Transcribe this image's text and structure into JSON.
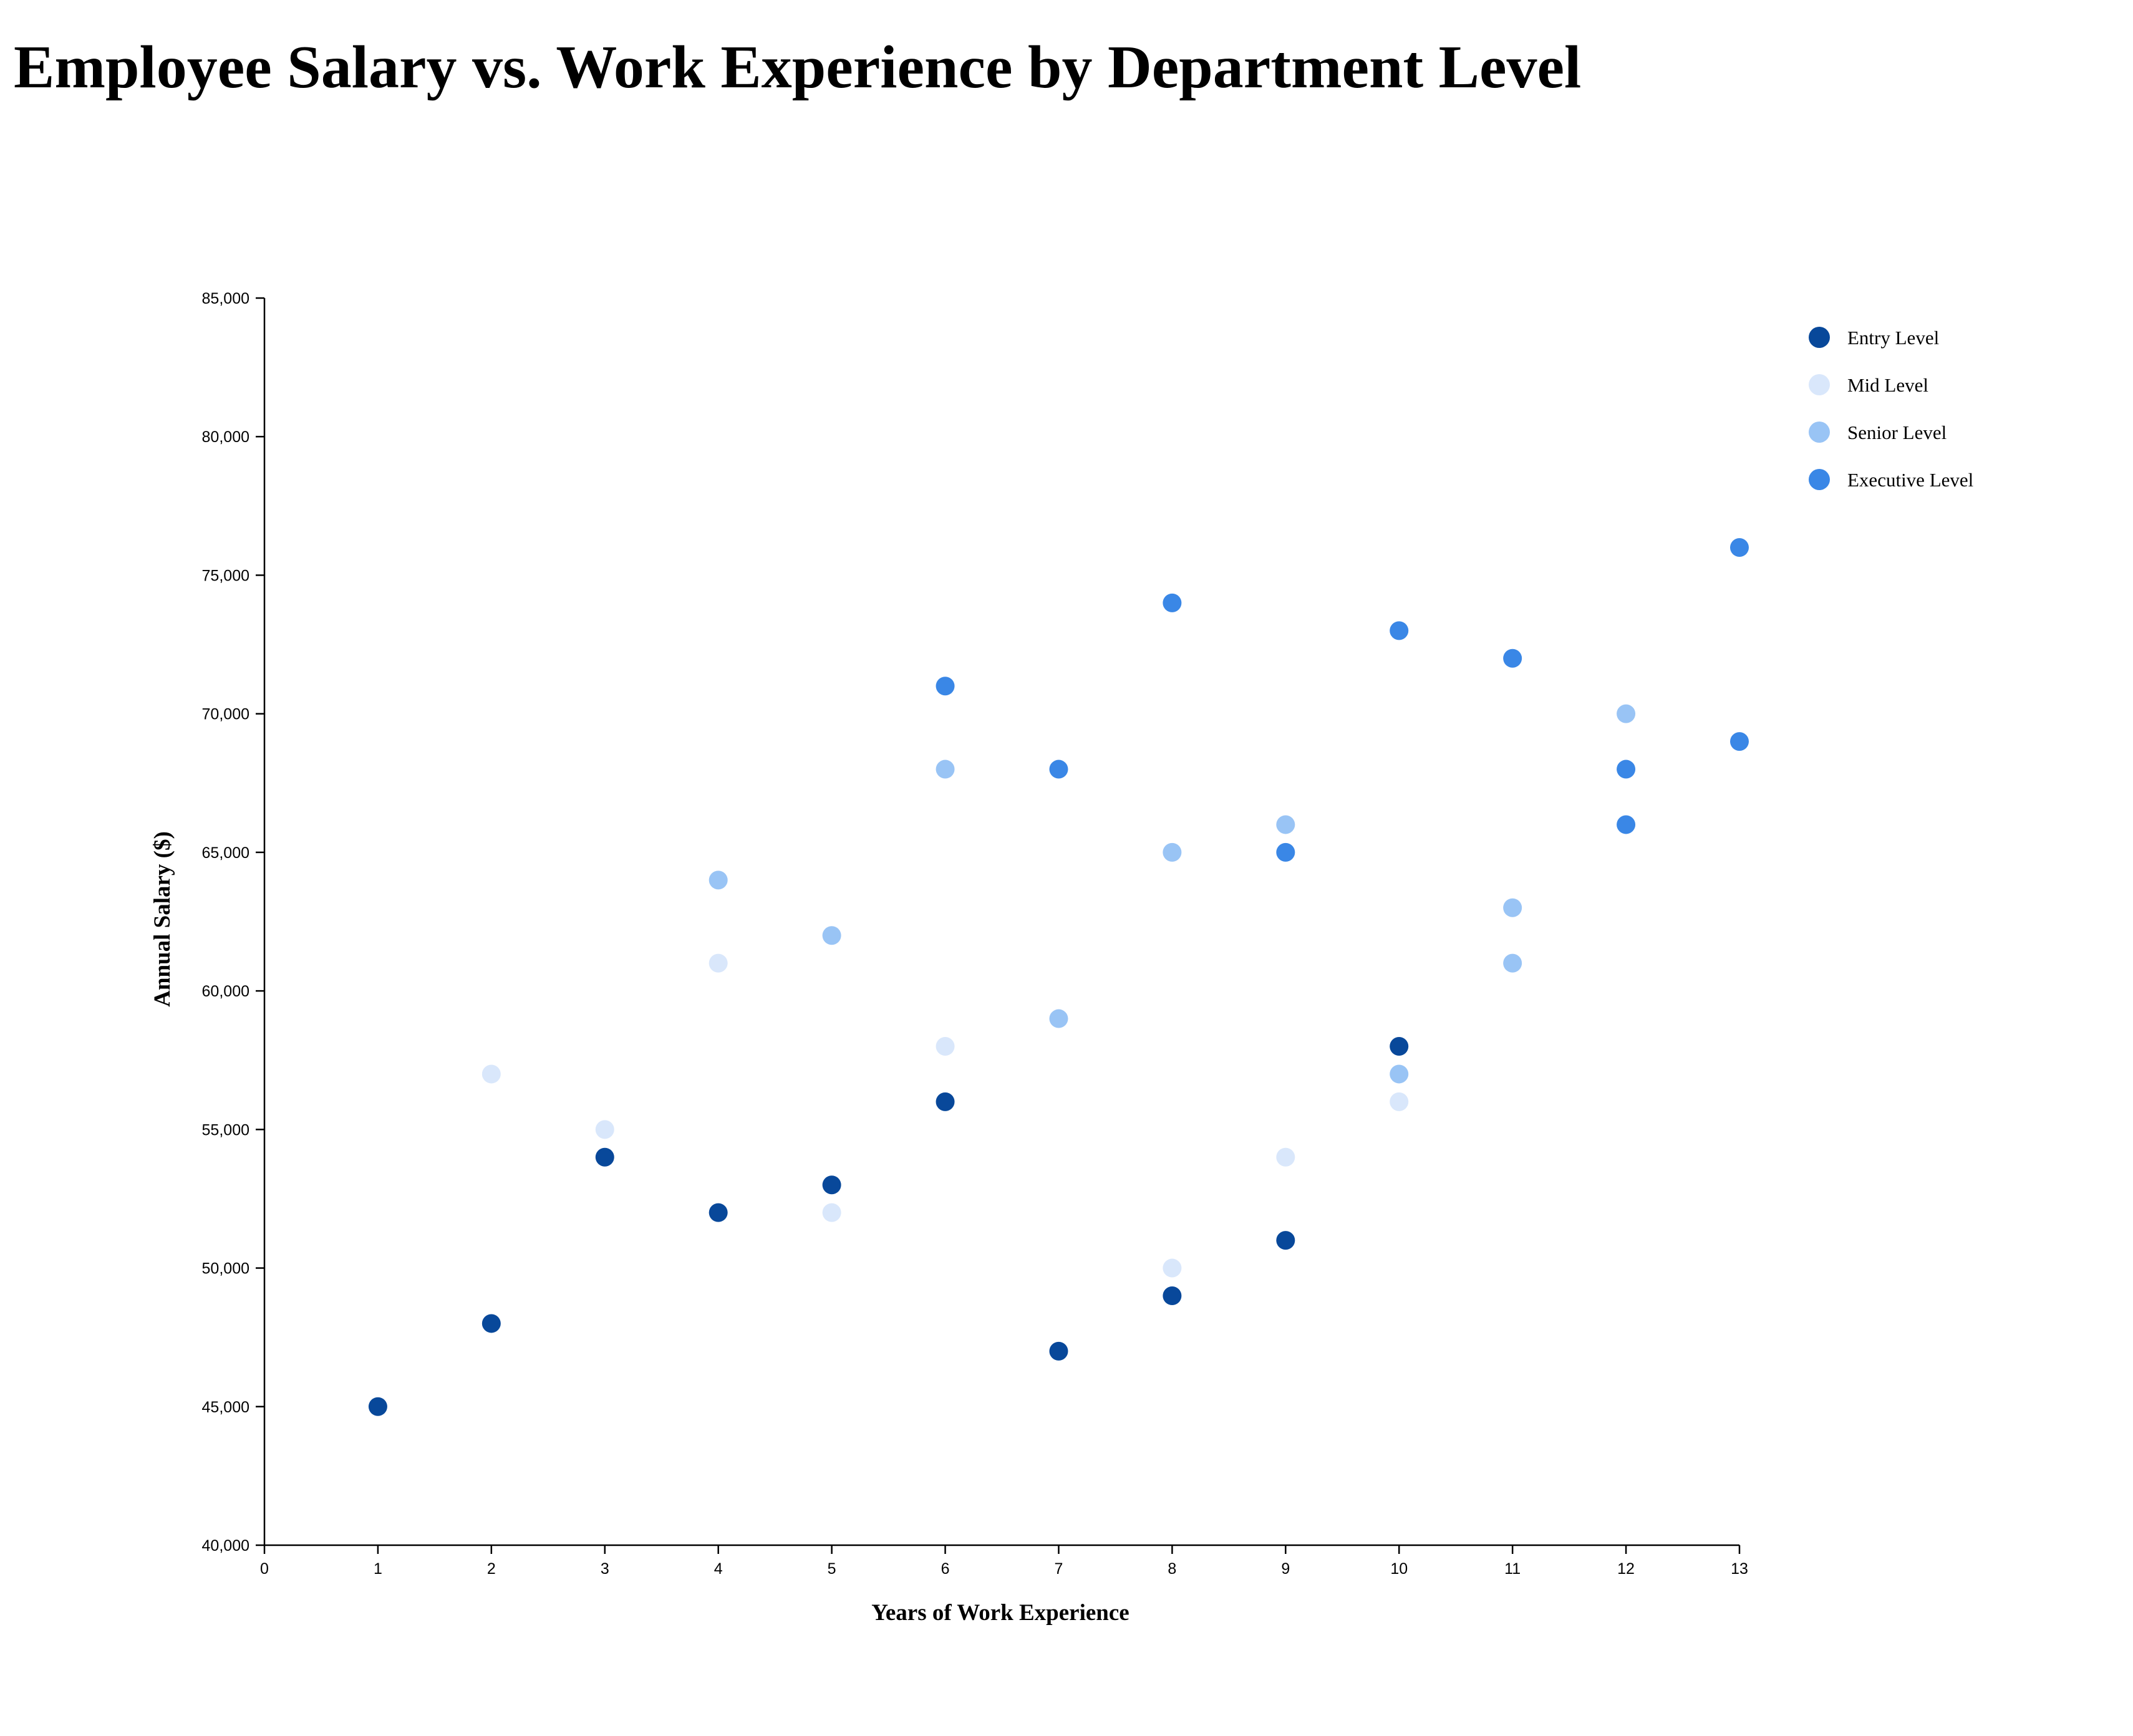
{
  "chart_data": {
    "type": "scatter",
    "title": "Employee Salary vs. Work Experience by Department Level",
    "xlabel": "Years of Work Experience",
    "ylabel": "Annual Salary ($)",
    "xlim": [
      0,
      13
    ],
    "ylim": [
      40000,
      85000
    ],
    "x_ticks": [
      "0",
      "1",
      "2",
      "3",
      "4",
      "5",
      "6",
      "7",
      "8",
      "9",
      "10",
      "11",
      "12",
      "13"
    ],
    "y_ticks": [
      "40,000",
      "45,000",
      "50,000",
      "55,000",
      "60,000",
      "65,000",
      "70,000",
      "75,000",
      "80,000",
      "85,000"
    ],
    "grid": false,
    "legend_position": "top-right",
    "series": [
      {
        "name": "Entry Level",
        "color": "#08489a",
        "points": [
          [
            1,
            45000
          ],
          [
            2,
            48000
          ],
          [
            3,
            54000
          ],
          [
            4,
            52000
          ],
          [
            5,
            53000
          ],
          [
            6,
            56000
          ],
          [
            7,
            47000
          ],
          [
            8,
            49000
          ],
          [
            9,
            51000
          ],
          [
            10,
            58000
          ]
        ]
      },
      {
        "name": "Mid Level",
        "color": "#d9e7fb",
        "points": [
          [
            2,
            57000
          ],
          [
            3,
            55000
          ],
          [
            4,
            61000
          ],
          [
            5,
            52000
          ],
          [
            6,
            58000
          ],
          [
            8,
            50000
          ],
          [
            9,
            54000
          ],
          [
            10,
            56000
          ]
        ]
      },
      {
        "name": "Senior Level",
        "color": "#99c4f5",
        "points": [
          [
            4,
            64000
          ],
          [
            5,
            62000
          ],
          [
            6,
            68000
          ],
          [
            7,
            59000
          ],
          [
            8,
            65000
          ],
          [
            9,
            66000
          ],
          [
            10,
            57000
          ],
          [
            11,
            63000
          ],
          [
            11,
            61000
          ],
          [
            12,
            70000
          ]
        ]
      },
      {
        "name": "Executive Level",
        "color": "#3a87e6",
        "points": [
          [
            6,
            71000
          ],
          [
            7,
            68000
          ],
          [
            8,
            74000
          ],
          [
            9,
            65000
          ],
          [
            10,
            73000
          ],
          [
            11,
            72000
          ],
          [
            12,
            68000
          ],
          [
            12,
            66000
          ],
          [
            13,
            76000
          ],
          [
            13,
            69000
          ]
        ]
      }
    ]
  }
}
